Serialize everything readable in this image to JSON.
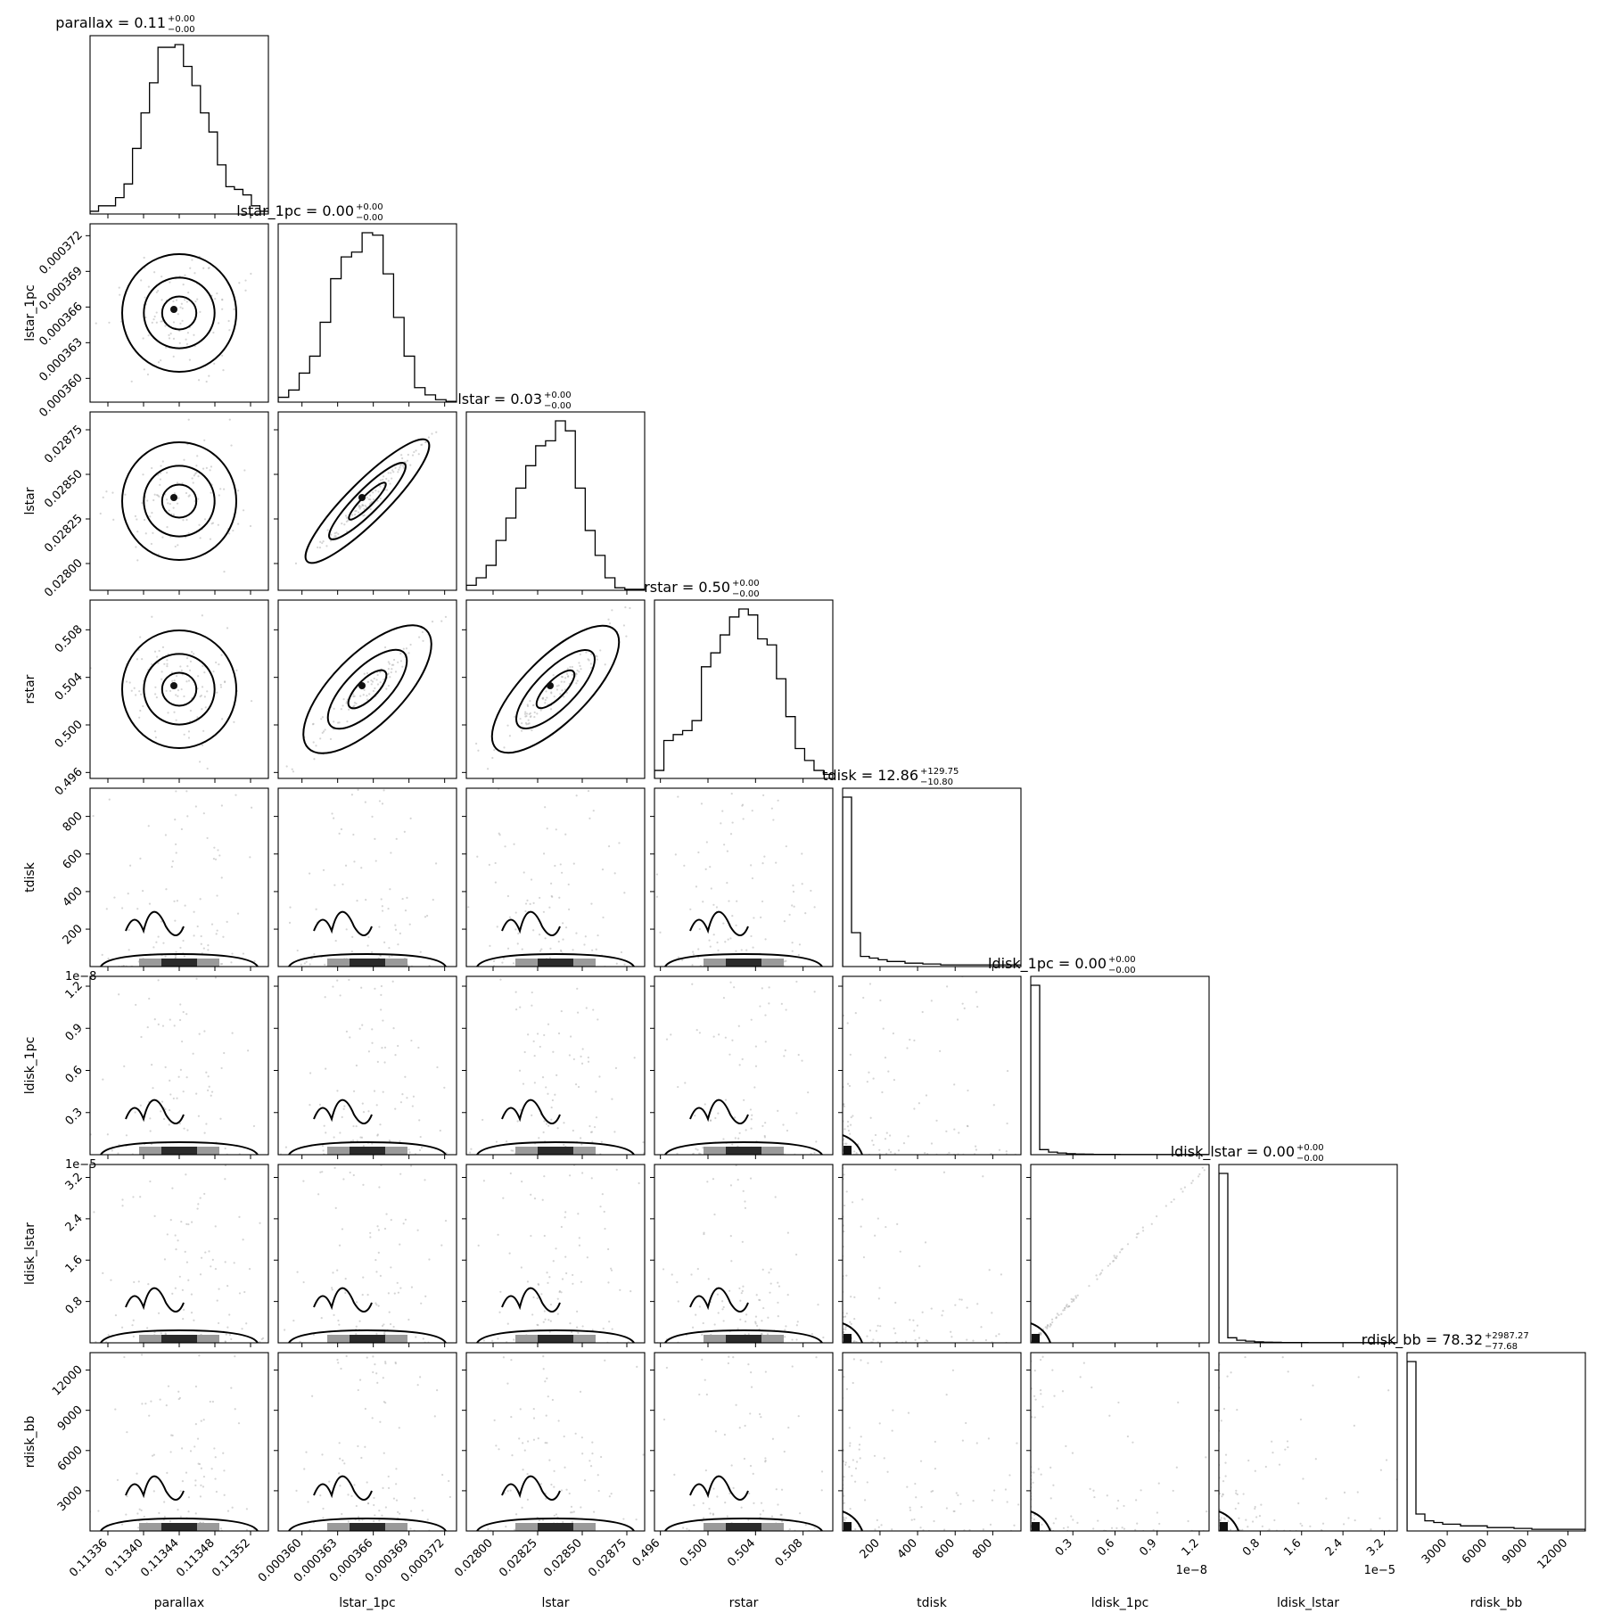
{
  "chart_data": {
    "type": "corner",
    "parameters": [
      {
        "name": "parallax",
        "title": "parallax = 0.11",
        "sup": "+0.00",
        "sub": "−0.00",
        "axis_label": "parallax",
        "range": [
          0.11334,
          0.11354
        ],
        "ticks": [
          0.11336,
          0.1134,
          0.11344,
          0.11348,
          0.11352
        ],
        "tick_labels": [
          "0.11336",
          "0.11340",
          "0.11344",
          "0.11348",
          "0.11352"
        ],
        "offset_label": "",
        "mode": "normal",
        "hist": [
          1,
          3,
          3,
          6,
          11,
          24,
          37,
          48,
          61,
          61,
          62,
          54,
          47,
          37,
          30,
          18,
          10,
          9,
          7,
          3,
          1
        ]
      },
      {
        "name": "lstar_1pc",
        "title": "lstar_1pc = 0.00",
        "sup": "+0.00",
        "sub": "−0.00",
        "axis_label": "lstar_1pc",
        "range": [
          0.000358,
          0.000373
        ],
        "ticks": [
          0.00036,
          0.000363,
          0.000366,
          0.000369,
          0.000372
        ],
        "tick_labels": [
          "0.000360",
          "0.000363",
          "0.000366",
          "0.000369",
          "0.000372"
        ],
        "offset_label": "",
        "mode": "normal",
        "hist": [
          2,
          5,
          12,
          19,
          33,
          51,
          60,
          62,
          70,
          69,
          53,
          35,
          19,
          6,
          3,
          1,
          0.3
        ]
      },
      {
        "name": "lstar",
        "title": "lstar = 0.03",
        "sup": "+0.00",
        "sub": "−0.00",
        "axis_label": "lstar",
        "range": [
          0.02785,
          0.02885
        ],
        "ticks": [
          0.028,
          0.02825,
          0.0285,
          0.02875
        ],
        "tick_labels": [
          "0.02800",
          "0.02825",
          "0.02850",
          "0.02875"
        ],
        "offset_label": "",
        "mode": "normal",
        "hist": [
          2,
          5,
          10,
          20,
          29,
          41,
          50,
          58,
          60,
          68,
          64,
          41,
          24,
          14,
          5,
          1,
          0.4,
          0.4
        ]
      },
      {
        "name": "rstar",
        "title": "rstar = 0.50",
        "sup": "+0.00",
        "sub": "−0.00",
        "axis_label": "rstar",
        "range": [
          0.4955,
          0.5105
        ],
        "ticks": [
          0.496,
          0.5,
          0.504,
          0.508
        ],
        "tick_labels": [
          "0.496",
          "0.500",
          "0.504",
          "0.508"
        ],
        "offset_label": "",
        "mode": "normal",
        "hist": [
          4,
          19,
          22,
          24,
          29,
          56,
          63,
          72,
          81,
          85,
          82,
          70,
          67,
          50,
          31,
          15,
          9,
          4,
          2
        ]
      },
      {
        "name": "tdisk",
        "title": "tdisk = 12.86",
        "sup": "+129.75",
        "sub": "−10.80",
        "axis_label": "tdisk",
        "range": [
          1,
          950
        ],
        "ticks": [
          200,
          400,
          600,
          800
        ],
        "tick_labels": [
          "200",
          "400",
          "600",
          "800"
        ],
        "offset_label": "",
        "mode": "heavy",
        "hist": [
          100,
          20,
          6,
          5,
          4,
          3,
          3,
          2,
          2,
          1.5,
          1.5,
          1,
          1,
          1,
          1,
          1,
          1,
          1,
          1,
          1
        ]
      },
      {
        "name": "ldisk_1pc",
        "title": "ldisk_1pc = 0.00",
        "sup": "+0.00",
        "sub": "−0.00",
        "axis_label": "ldisk_1pc",
        "range": [
          0,
          1.27
        ],
        "ticks": [
          0.3,
          0.6,
          0.9,
          1.2
        ],
        "tick_labels": [
          "0.3",
          "0.6",
          "0.9",
          "1.2"
        ],
        "offset_label": "1e−8",
        "mode": "heavy",
        "hist": [
          100,
          3,
          1.5,
          1,
          0.6,
          0.4,
          0.3,
          0.2,
          0.2,
          0.2,
          0.1,
          0.1,
          0.1,
          0.1,
          0.1,
          0.1,
          0.1,
          0.1,
          0.1,
          0.1
        ]
      },
      {
        "name": "ldisk_lstar",
        "title": "ldisk_lstar = 0.00",
        "sup": "+0.00",
        "sub": "−0.00",
        "axis_label": "ldisk_lstar",
        "range": [
          0,
          3.45
        ],
        "ticks": [
          0.8,
          1.6,
          2.4,
          3.2
        ],
        "tick_labels": [
          "0.8",
          "1.6",
          "2.4",
          "3.2"
        ],
        "offset_label": "1e−5",
        "mode": "heavy",
        "hist": [
          100,
          3,
          1.5,
          1,
          0.6,
          0.4,
          0.3,
          0.2,
          0.2,
          0.2,
          0.1,
          0.1,
          0.1,
          0.1,
          0.1,
          0.1,
          0.1,
          0.1,
          0.1,
          0.1
        ]
      },
      {
        "name": "rdisk_bb",
        "title": "rdisk_bb = 78.32",
        "sup": "+2987.27",
        "sub": "−77.68",
        "axis_label": "rdisk_bb",
        "range": [
          1,
          13300
        ],
        "ticks": [
          3000,
          6000,
          9000,
          12000
        ],
        "tick_labels": [
          "3000",
          "6000",
          "9000",
          "12000"
        ],
        "offset_label": "",
        "mode": "heavy",
        "hist": [
          100,
          10,
          6,
          5,
          4,
          4,
          3,
          3,
          3,
          2,
          2,
          2,
          1.5,
          1.5,
          1,
          1,
          1,
          1,
          1,
          1
        ]
      }
    ],
    "layout": "lower-triangular corner plot, 8x8"
  }
}
